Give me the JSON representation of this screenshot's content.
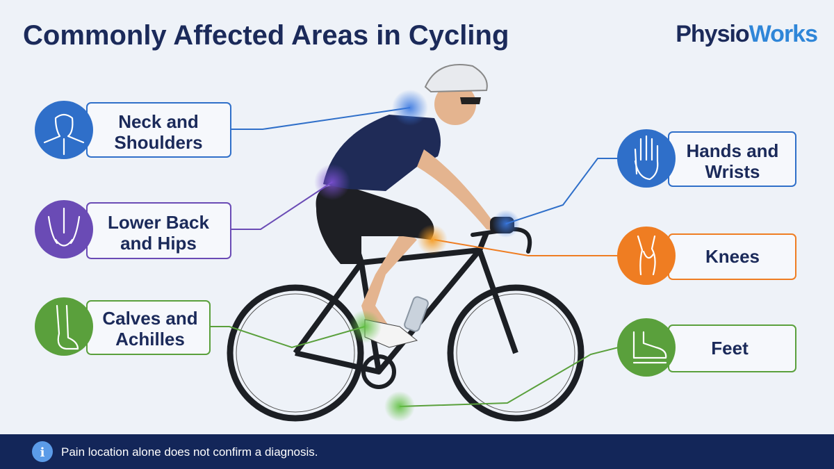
{
  "title": "Commonly Affected Areas in Cycling",
  "brand": [
    "Physio",
    "Works"
  ],
  "areas": [
    {
      "lines": [
        "Neck and",
        "Shoulders"
      ]
    },
    {
      "lines": [
        "Lower Back",
        "and Hips"
      ]
    },
    {
      "lines": [
        "Calves and",
        "Achilles"
      ]
    },
    {
      "lines": [
        "Hands and",
        "Wrists"
      ]
    },
    {
      "lines": [
        "Knees"
      ]
    },
    {
      "lines": [
        "Feet"
      ]
    }
  ],
  "footer": {
    "icon": "i",
    "note": "Pain location alone does not confirm a diagnosis."
  }
}
